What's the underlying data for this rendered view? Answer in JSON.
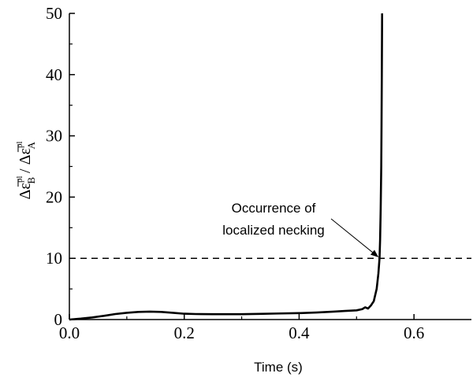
{
  "chart_data": {
    "type": "line",
    "title": "",
    "xlabel": "Time (s)",
    "ylabel_parts": {
      "num": "Δε̅",
      "num_sup": "pl",
      "num_sub": "B",
      "slash": " / ",
      "den": "Δε̅",
      "den_sup": "pl",
      "den_sub": "A"
    },
    "xlim": [
      0.0,
      0.7
    ],
    "ylim": [
      0,
      50
    ],
    "xticks": [
      0.0,
      0.2,
      0.4,
      0.6
    ],
    "xtick_labels": [
      "0.0",
      "0.2",
      "0.4",
      "0.6"
    ],
    "yticks": [
      0,
      10,
      20,
      30,
      40,
      50
    ],
    "ytick_labels": [
      "0",
      "10",
      "20",
      "30",
      "40",
      "50"
    ],
    "grid": false,
    "legend": "none",
    "reference_line": {
      "y": 10,
      "style": "dashed"
    },
    "annotation": {
      "lines": [
        "Occurrence of",
        "localized necking"
      ],
      "target": [
        0.54,
        10
      ]
    },
    "series": [
      {
        "x": [
          0.0,
          0.02,
          0.04,
          0.06,
          0.08,
          0.1,
          0.12,
          0.14,
          0.16,
          0.18,
          0.2,
          0.22,
          0.25,
          0.28,
          0.3,
          0.33,
          0.36,
          0.4,
          0.43,
          0.46,
          0.48,
          0.5,
          0.51,
          0.515,
          0.52,
          0.525,
          0.53,
          0.535,
          0.538,
          0.54,
          0.541,
          0.542,
          0.543,
          0.5435,
          0.544,
          0.5445
        ],
        "y": [
          0,
          0.15,
          0.35,
          0.6,
          0.9,
          1.1,
          1.25,
          1.3,
          1.25,
          1.1,
          0.95,
          0.9,
          0.88,
          0.87,
          0.88,
          0.92,
          0.98,
          1.05,
          1.15,
          1.3,
          1.4,
          1.5,
          1.7,
          2.0,
          1.8,
          2.3,
          3.0,
          5.0,
          7.5,
          10,
          13,
          18,
          25,
          32,
          40,
          50
        ]
      }
    ]
  }
}
